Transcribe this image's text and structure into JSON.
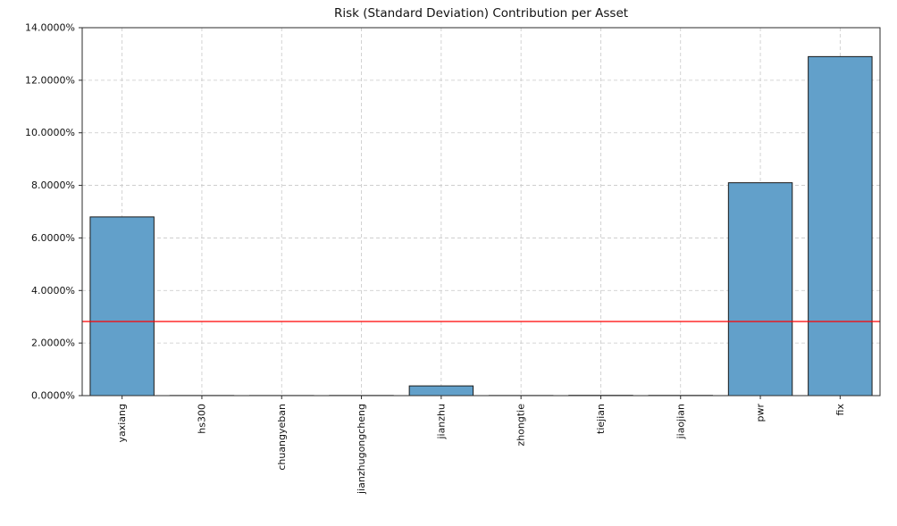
{
  "chart_data": {
    "type": "bar",
    "title": "Risk (Standard Deviation) Contribution per Asset",
    "categories": [
      "yaxiang",
      "hs300",
      "chuangyeban",
      "jianzhugongcheng",
      "jianzhu",
      "zhongtie",
      "tiejian",
      "jiaojian",
      "pwr",
      "fix"
    ],
    "values": [
      6.8,
      0.005,
      0.004,
      0.006,
      0.37,
      0.005,
      0.01,
      0.008,
      8.1,
      12.9
    ],
    "unit": "%",
    "xlabel": "",
    "ylabel": "",
    "ylim": [
      0,
      14
    ],
    "ytick_step": 2,
    "ytick_decimals": 4,
    "ytick_labels": [
      "0.0000%",
      "2.0000%",
      "4.0000%",
      "6.0000%",
      "8.0000%",
      "10.0000%",
      "12.0000%",
      "14.0000%"
    ],
    "reference_line": {
      "value": 2.82,
      "color": "#ff0000"
    },
    "grid": {
      "show": true,
      "style": "dashed",
      "color": "#c8c8c8"
    },
    "bar": {
      "fill": "#62a0ca",
      "edge": "#1a1a1a",
      "width_fraction": 0.8
    },
    "legend": "none",
    "axis_color": "#2b2b2b"
  }
}
